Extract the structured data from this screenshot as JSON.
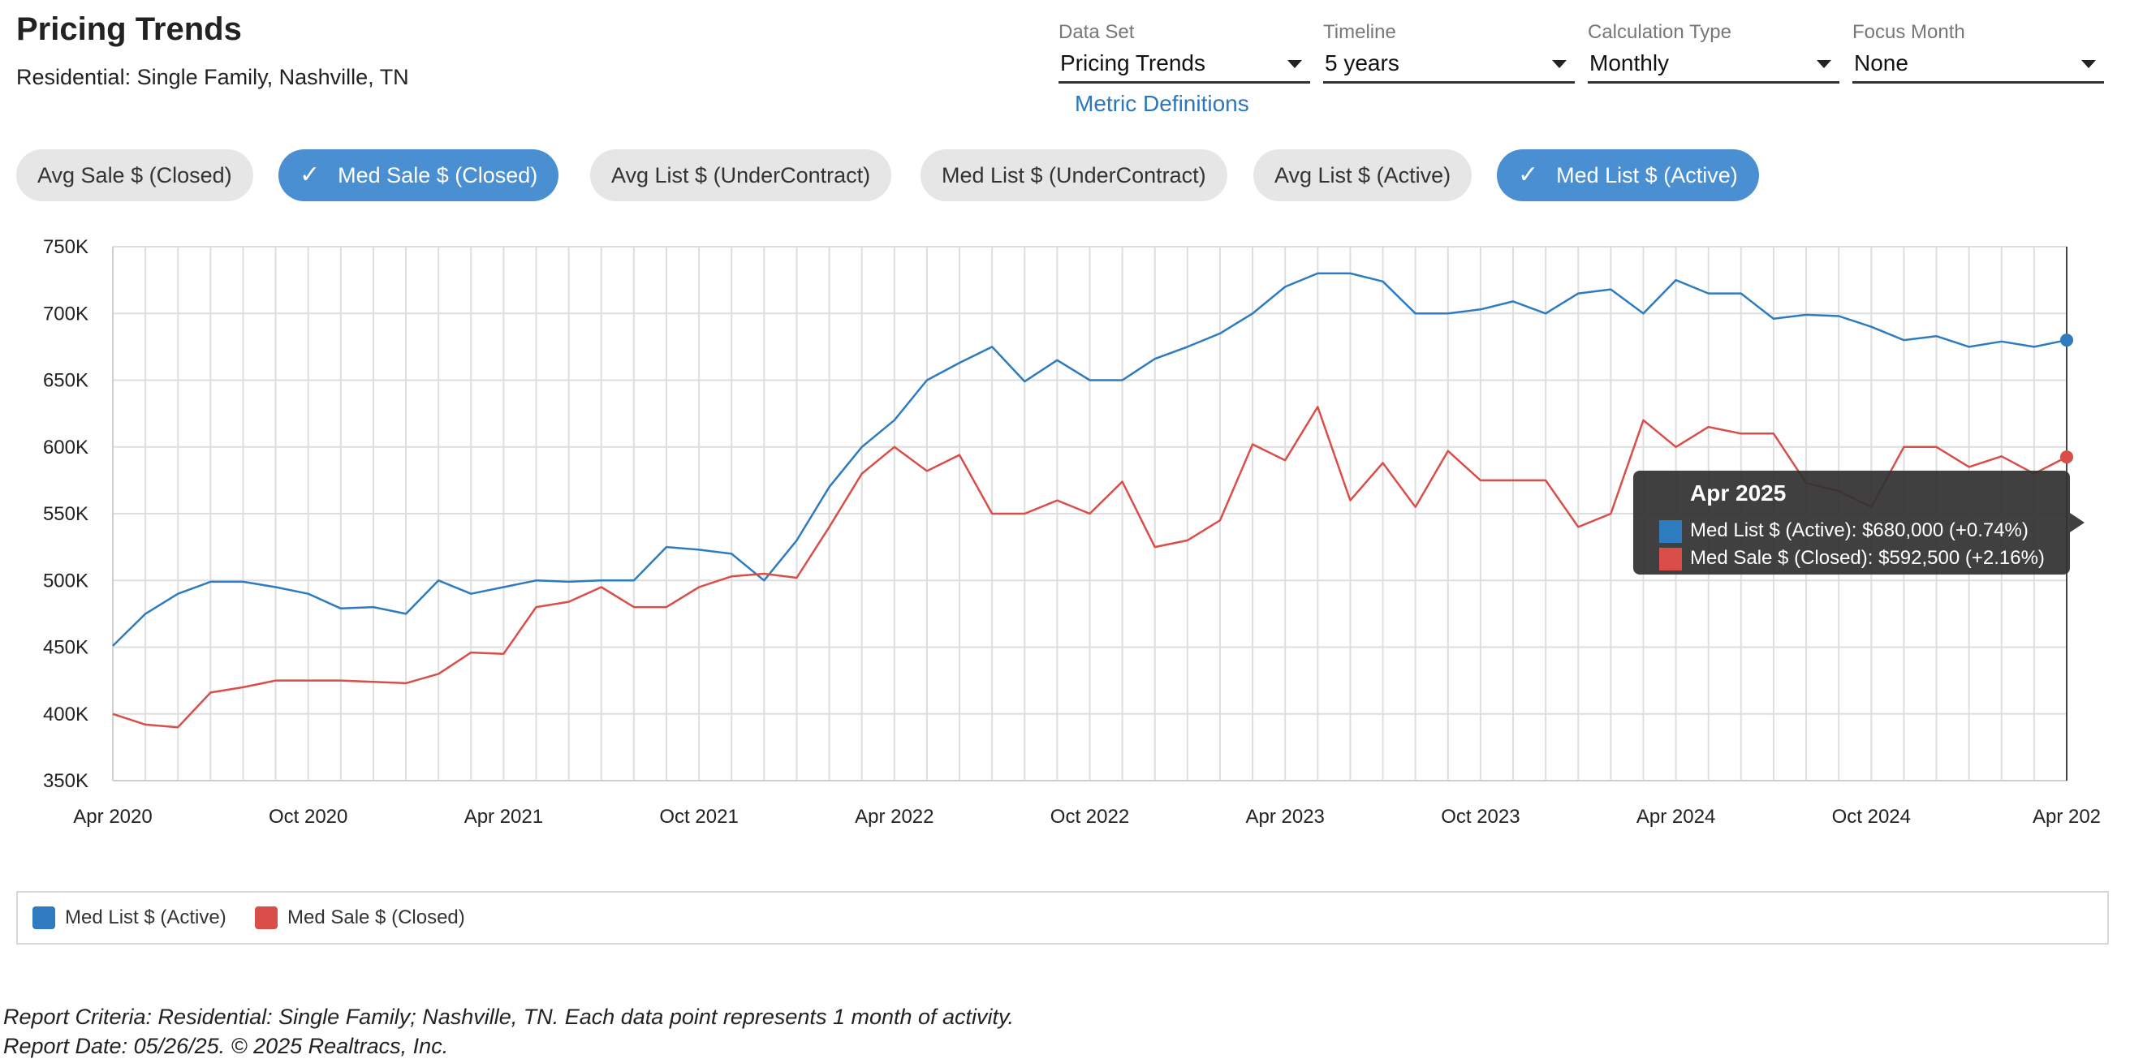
{
  "header": {
    "title": "Pricing Trends",
    "subtitle": "Residential: Single Family, Nashville, TN"
  },
  "controls": [
    {
      "label": "Data Set",
      "value": "Pricing Trends"
    },
    {
      "label": "Timeline",
      "value": "5 years"
    },
    {
      "label": "Calculation Type",
      "value": "Monthly"
    },
    {
      "label": "Focus Month",
      "value": "None"
    }
  ],
  "metric_link": "Metric Definitions",
  "chips": [
    {
      "label": "Avg Sale $ (Closed)",
      "selected": false
    },
    {
      "label": "Med Sale $ (Closed)",
      "selected": true
    },
    {
      "label": "Avg List $ (UnderContract)",
      "selected": false
    },
    {
      "label": "Med List $ (UnderContract)",
      "selected": false
    },
    {
      "label": "Avg List $ (Active)",
      "selected": false
    },
    {
      "label": "Med List $ (Active)",
      "selected": true
    }
  ],
  "chart_data": {
    "type": "line",
    "y_tick_labels": [
      "750K",
      "700K",
      "650K",
      "600K",
      "550K",
      "500K",
      "450K",
      "400K",
      "350K"
    ],
    "ylim": [
      350000,
      750000
    ],
    "x_tick_labels": [
      "Apr 2020",
      "Oct 2020",
      "Apr 2021",
      "Oct 2021",
      "Apr 2022",
      "Oct 2022",
      "Apr 2023",
      "Oct 2023",
      "Apr 2024",
      "Oct 2024",
      "Apr 202"
    ],
    "x_start": "Apr 2020",
    "x_end": "Apr 2025",
    "grid": true,
    "series": [
      {
        "name": "Med List $ (Active)",
        "color": "#2e7bbf",
        "values": [
          451000,
          475000,
          490000,
          499000,
          499000,
          495000,
          490000,
          479000,
          480000,
          475000,
          500000,
          490000,
          495000,
          500000,
          499000,
          500000,
          500000,
          525000,
          523000,
          520000,
          500000,
          530000,
          570000,
          600000,
          620000,
          650000,
          663000,
          675000,
          649000,
          665000,
          650000,
          650000,
          666000,
          675000,
          685000,
          700000,
          720000,
          730000,
          730000,
          724000,
          700000,
          700000,
          703000,
          709000,
          700000,
          715000,
          718000,
          700000,
          725000,
          715000,
          715000,
          696000,
          699000,
          698000,
          690000,
          680000,
          683000,
          675000,
          679000,
          675000,
          680000
        ]
      },
      {
        "name": "Med Sale $ (Closed)",
        "color": "#d94e48",
        "values": [
          400000,
          392000,
          390000,
          416000,
          420000,
          425000,
          425000,
          425000,
          424000,
          423000,
          430000,
          446000,
          445000,
          480000,
          484000,
          495000,
          480000,
          480000,
          495000,
          503000,
          505000,
          502000,
          540000,
          580000,
          600000,
          582000,
          594000,
          550000,
          550000,
          560000,
          550000,
          574000,
          525000,
          530000,
          545000,
          602000,
          590000,
          630000,
          560000,
          588000,
          555000,
          597000,
          575000,
          575000,
          575000,
          540000,
          550000,
          620000,
          600000,
          615000,
          610000,
          610000,
          573000,
          567000,
          555000,
          600000,
          600000,
          585000,
          593000,
          580000,
          592500
        ]
      }
    ]
  },
  "tooltip": {
    "title": "Apr 2025",
    "rows": [
      {
        "color": "#2e7bbf",
        "text": "Med List $ (Active): $680,000 (+0.74%)"
      },
      {
        "color": "#d94e48",
        "text": "Med Sale $ (Closed): $592,500 (+2.16%)"
      }
    ]
  },
  "legend": [
    {
      "label": "Med List $ (Active)",
      "color": "#2e7bbf"
    },
    {
      "label": "Med Sale $ (Closed)",
      "color": "#d94e48"
    }
  ],
  "footer": {
    "criteria": "Report Criteria: Residential: Single Family; Nashville, TN. Each data point represents 1 month of activity.",
    "date": "Report Date: 05/26/25. © 2025 Realtracs, Inc."
  }
}
